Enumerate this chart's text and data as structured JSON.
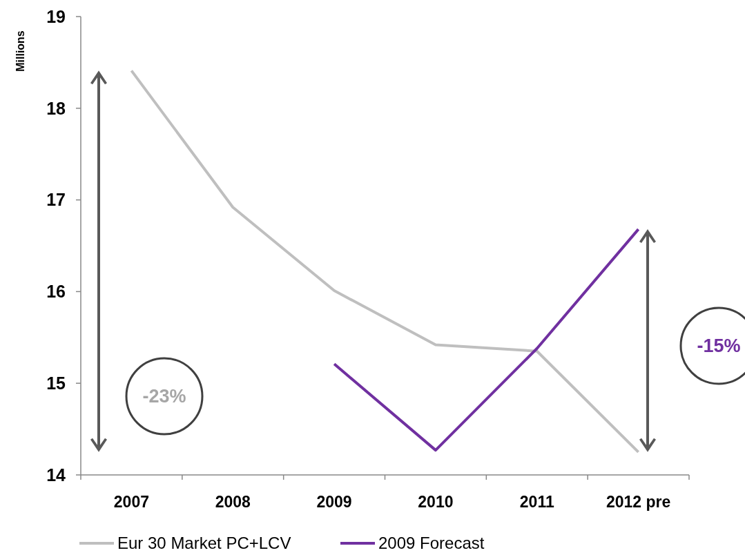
{
  "chart_data": {
    "type": "line",
    "ylabel": "Millions",
    "categories": [
      "2007",
      "2008",
      "2009",
      "2010",
      "2011",
      "2012 pre"
    ],
    "series": [
      {
        "name": "Eur 30 Market PC+LCV",
        "color": "#bfbfbf",
        "values": [
          18.41,
          16.92,
          16.01,
          15.42,
          15.35,
          14.25
        ]
      },
      {
        "name": "2009 Forecast",
        "color": "#7030a0",
        "values": [
          null,
          null,
          15.21,
          14.27,
          15.38,
          16.68
        ]
      }
    ],
    "ylim": [
      14,
      19
    ],
    "yticks": [
      14,
      15,
      16,
      17,
      18,
      19
    ],
    "grid": false,
    "legend": "bottom",
    "marker": "none",
    "line_style": "solid",
    "annotations": [
      "-23%",
      "-15%"
    ]
  }
}
